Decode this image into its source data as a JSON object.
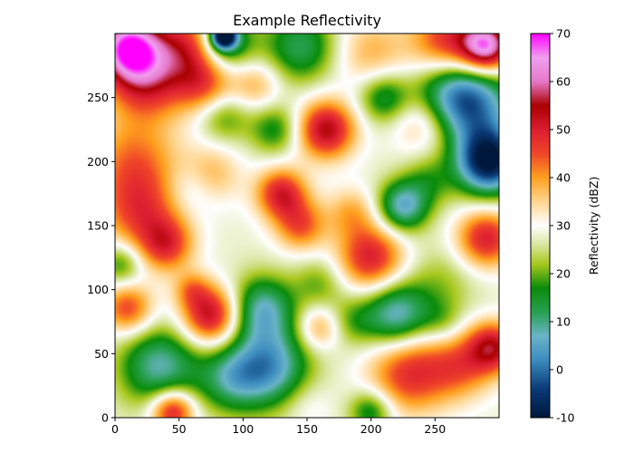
{
  "chart_data": {
    "type": "heatmap",
    "title": "Example Reflectivity",
    "xlabel": "",
    "ylabel": "",
    "xlim": [
      0,
      300
    ],
    "ylim": [
      0,
      300
    ],
    "x_ticks": [
      0,
      50,
      100,
      150,
      200,
      250
    ],
    "y_ticks": [
      0,
      50,
      100,
      150,
      200,
      250
    ],
    "grid": false,
    "colorbar": {
      "label": "Reflectivity (dBZ)",
      "range": [
        -10,
        70
      ],
      "ticks": [
        -10,
        0,
        10,
        20,
        30,
        40,
        50,
        60,
        70
      ],
      "colormap_stops": [
        {
          "v": -10,
          "color": "#00183c"
        },
        {
          "v": -4,
          "color": "#0a3a78"
        },
        {
          "v": 2,
          "color": "#3c8cc0"
        },
        {
          "v": 7,
          "color": "#6ab4c8"
        },
        {
          "v": 12,
          "color": "#28a050"
        },
        {
          "v": 17,
          "color": "#0a8c0a"
        },
        {
          "v": 22,
          "color": "#a8c81e"
        },
        {
          "v": 26,
          "color": "#dae6a0"
        },
        {
          "v": 30,
          "color": "#ffffff"
        },
        {
          "v": 35,
          "color": "#ffd690"
        },
        {
          "v": 40,
          "color": "#ffa01e"
        },
        {
          "v": 45,
          "color": "#f04628"
        },
        {
          "v": 50,
          "color": "#dc1e32"
        },
        {
          "v": 55,
          "color": "#aa0000"
        },
        {
          "v": 60,
          "color": "#e678c8"
        },
        {
          "v": 65,
          "color": "#f0a0f0"
        },
        {
          "v": 70,
          "color": "#ff00ff"
        }
      ]
    },
    "field": {
      "base": 28,
      "blobs": [
        {
          "x": 85,
          "y": 298,
          "amp": -40,
          "r": 7
        },
        {
          "x": 85,
          "y": 292,
          "amp": -20,
          "r": 16
        },
        {
          "x": 10,
          "y": 290,
          "amp": 36,
          "r": 18
        },
        {
          "x": 290,
          "y": 290,
          "amp": 36,
          "r": 14
        },
        {
          "x": 25,
          "y": 265,
          "amp": 22,
          "r": 22
        },
        {
          "x": 60,
          "y": 290,
          "amp": 20,
          "r": 20
        },
        {
          "x": 145,
          "y": 290,
          "amp": -16,
          "r": 20
        },
        {
          "x": 200,
          "y": 285,
          "amp": 10,
          "r": 20
        },
        {
          "x": 260,
          "y": 292,
          "amp": 22,
          "r": 20
        },
        {
          "x": 70,
          "y": 260,
          "amp": 14,
          "r": 16
        },
        {
          "x": 110,
          "y": 260,
          "amp": 10,
          "r": 14
        },
        {
          "x": 210,
          "y": 250,
          "amp": -14,
          "r": 14
        },
        {
          "x": 265,
          "y": 255,
          "amp": -22,
          "r": 22
        },
        {
          "x": 292,
          "y": 200,
          "amp": -38,
          "r": 18
        },
        {
          "x": 285,
          "y": 240,
          "amp": -16,
          "r": 22
        },
        {
          "x": 240,
          "y": 230,
          "amp": 10,
          "r": 16
        },
        {
          "x": 165,
          "y": 225,
          "amp": 26,
          "r": 16
        },
        {
          "x": 125,
          "y": 225,
          "amp": -12,
          "r": 14
        },
        {
          "x": 85,
          "y": 235,
          "amp": -10,
          "r": 14
        },
        {
          "x": 15,
          "y": 200,
          "amp": 14,
          "r": 25
        },
        {
          "x": 20,
          "y": 160,
          "amp": 16,
          "r": 22
        },
        {
          "x": 75,
          "y": 190,
          "amp": 10,
          "r": 16
        },
        {
          "x": 130,
          "y": 175,
          "amp": 22,
          "r": 14
        },
        {
          "x": 145,
          "y": 150,
          "amp": 16,
          "r": 14
        },
        {
          "x": 60,
          "y": 180,
          "amp": -6,
          "r": 14
        },
        {
          "x": 40,
          "y": 135,
          "amp": 18,
          "r": 15
        },
        {
          "x": 5,
          "y": 120,
          "amp": -12,
          "r": 12
        },
        {
          "x": 225,
          "y": 165,
          "amp": -22,
          "r": 14
        },
        {
          "x": 245,
          "y": 185,
          "amp": -8,
          "r": 14
        },
        {
          "x": 200,
          "y": 125,
          "amp": 22,
          "r": 18
        },
        {
          "x": 185,
          "y": 160,
          "amp": 10,
          "r": 14
        },
        {
          "x": 290,
          "y": 140,
          "amp": 22,
          "r": 16
        },
        {
          "x": 295,
          "y": 55,
          "amp": 24,
          "r": 14
        },
        {
          "x": 255,
          "y": 105,
          "amp": -6,
          "r": 20
        },
        {
          "x": 10,
          "y": 85,
          "amp": 18,
          "r": 14
        },
        {
          "x": 75,
          "y": 80,
          "amp": 26,
          "r": 16
        },
        {
          "x": 60,
          "y": 100,
          "amp": 10,
          "r": 10
        },
        {
          "x": 115,
          "y": 85,
          "amp": -20,
          "r": 18
        },
        {
          "x": 120,
          "y": 40,
          "amp": -24,
          "r": 22
        },
        {
          "x": 90,
          "y": 30,
          "amp": -14,
          "r": 18
        },
        {
          "x": 35,
          "y": 40,
          "amp": -20,
          "r": 22
        },
        {
          "x": 160,
          "y": 70,
          "amp": 12,
          "r": 12
        },
        {
          "x": 220,
          "y": 80,
          "amp": -22,
          "r": 18
        },
        {
          "x": 185,
          "y": 75,
          "amp": -8,
          "r": 14
        },
        {
          "x": 160,
          "y": 105,
          "amp": -8,
          "r": 14
        },
        {
          "x": 230,
          "y": 35,
          "amp": 20,
          "r": 22
        },
        {
          "x": 270,
          "y": 40,
          "amp": 14,
          "r": 18
        },
        {
          "x": 45,
          "y": 5,
          "amp": 24,
          "r": 12
        },
        {
          "x": 150,
          "y": 10,
          "amp": 4,
          "r": 14
        },
        {
          "x": 200,
          "y": 5,
          "amp": -14,
          "r": 12
        },
        {
          "x": 255,
          "y": 75,
          "amp": -6,
          "r": 12
        }
      ]
    }
  }
}
